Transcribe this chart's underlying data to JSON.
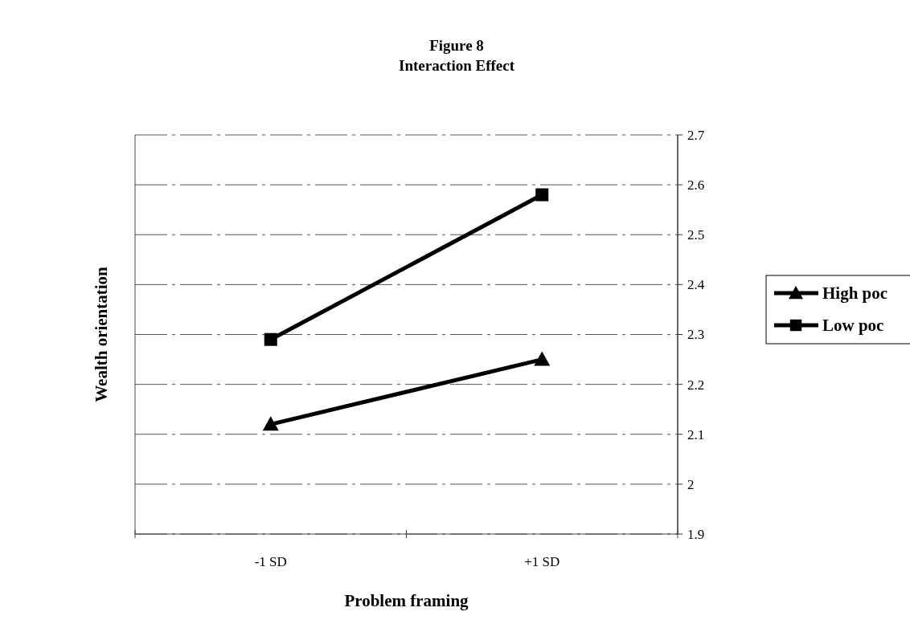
{
  "chart_data": {
    "type": "line",
    "title": "Figure 8",
    "subtitle": "Interaction Effect",
    "xlabel": "Problem framing",
    "ylabel": "Wealth orientation",
    "categories": [
      "-1 SD",
      "+1 SD"
    ],
    "series": [
      {
        "name": "High poc",
        "color": "#000000",
        "marker": "triangle",
        "values": [
          2.12,
          2.25
        ]
      },
      {
        "name": "Low poc",
        "color": "#000000",
        "marker": "square",
        "values": [
          2.29,
          2.58
        ]
      }
    ],
    "ylim": [
      1.9,
      2.7
    ],
    "yticks": [
      1.9,
      2,
      2.1,
      2.2,
      2.3,
      2.4,
      2.5,
      2.6,
      2.7
    ],
    "grid": "y",
    "legend": "right",
    "line_style": "solid"
  }
}
